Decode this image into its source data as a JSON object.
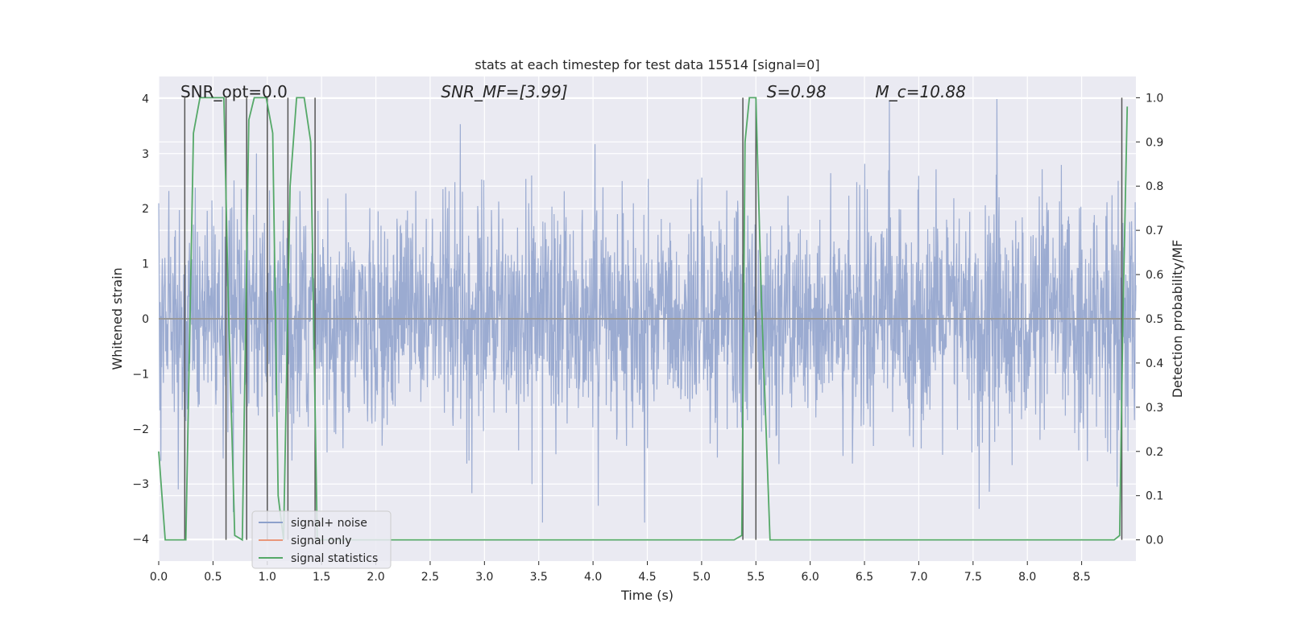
{
  "chart_data": {
    "type": "line",
    "title": "stats at each timestep for test data 15514 [signal=0]",
    "xlabel": "Time (s)",
    "ylabel": "Whitened strain",
    "y2label": "Detection probability/MF",
    "xlim": [
      0.0,
      9.0
    ],
    "ylim": [
      -4.4,
      4.4
    ],
    "y2lim": [
      -0.048,
      1.048
    ],
    "xticks": [
      0.0,
      0.5,
      1.0,
      1.5,
      2.0,
      2.5,
      3.0,
      3.5,
      4.0,
      4.5,
      5.0,
      5.5,
      6.0,
      6.5,
      7.0,
      7.5,
      8.0,
      8.5
    ],
    "yticks": [
      -4,
      -3,
      -2,
      -1,
      0,
      1,
      2,
      3,
      4
    ],
    "y2ticks": [
      0.0,
      0.1,
      0.2,
      0.3,
      0.4,
      0.5,
      0.6,
      0.7,
      0.8,
      0.9,
      1.0
    ],
    "grid": true,
    "annotations": [
      {
        "x": 0.2,
        "text": "SNR_opt=0.0",
        "italic": false
      },
      {
        "x": 2.6,
        "text": "SNR_MF=[3.99]",
        "italic": true
      },
      {
        "x": 5.6,
        "text": "S=0.98",
        "italic": true
      },
      {
        "x": 6.6,
        "text": "M_c=10.88",
        "italic": true
      }
    ],
    "noise": {
      "name": "signal+ noise",
      "t_start": 0.0,
      "t_end": 9.0,
      "n_points": 2700,
      "std": 1.0,
      "spike_max": 4.0,
      "spike_min": -3.7
    },
    "signal_only": {
      "name": "signal only",
      "value": 0.0
    },
    "statistics": {
      "name": "signal statistics",
      "x": [
        0.0,
        0.06,
        0.12,
        0.25,
        0.32,
        0.38,
        0.46,
        0.55,
        0.6,
        0.64,
        0.7,
        0.77,
        0.83,
        0.88,
        0.99,
        1.05,
        1.1,
        1.15,
        1.21,
        1.27,
        1.34,
        1.4,
        1.46,
        1.52,
        1.6,
        2.0,
        3.0,
        4.0,
        5.0,
        5.3,
        5.37,
        5.4,
        5.44,
        5.5,
        5.55,
        5.63,
        5.7,
        6.0,
        7.0,
        8.0,
        8.8,
        8.85,
        8.88,
        8.92
      ],
      "y": [
        0.2,
        0.0,
        0.0,
        0.0,
        0.92,
        1.0,
        1.0,
        1.0,
        1.0,
        0.55,
        0.01,
        0.0,
        0.95,
        1.0,
        1.0,
        0.92,
        0.1,
        0.0,
        0.8,
        1.0,
        1.0,
        0.9,
        0.0,
        0.0,
        0.0,
        0.0,
        0.0,
        0.0,
        0.0,
        0.0,
        0.01,
        0.9,
        1.0,
        1.0,
        0.55,
        0.0,
        0.0,
        0.0,
        0.0,
        0.0,
        0.0,
        0.01,
        0.5,
        0.98
      ]
    },
    "vlines": [
      0.24,
      0.62,
      0.81,
      1.0,
      1.19,
      1.44,
      5.38,
      5.5,
      8.87
    ],
    "legend": {
      "position": "lower-left",
      "entries": [
        "signal+ noise",
        "signal only",
        "signal statistics"
      ]
    },
    "colors": {
      "noise": "#8da0cb",
      "signal_only": "#e9967a",
      "statistics": "#55a868",
      "vline": "#555555",
      "background": "#eaeaf2",
      "grid": "#ffffff"
    }
  }
}
